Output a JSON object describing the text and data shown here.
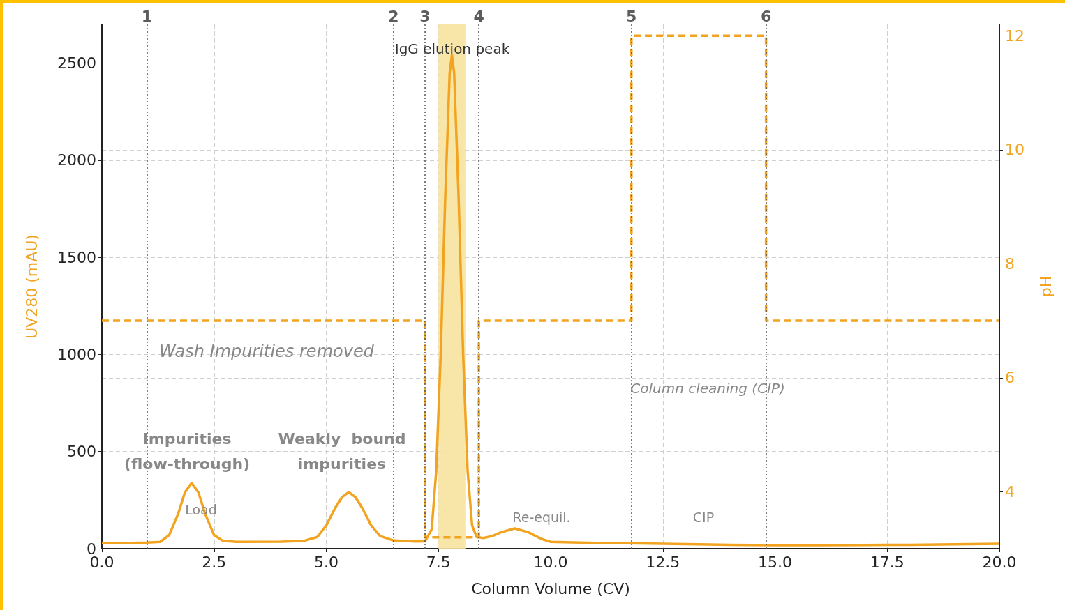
{
  "chart_data": {
    "type": "line",
    "xlabel": "Column Volume (CV)",
    "ylabel": "UV280 (mAU)",
    "y2label": "pH",
    "xlim": [
      0,
      20
    ],
    "xticks": [
      {
        "value": 0,
        "label": "0.0"
      },
      2.5,
      {
        "value": 5,
        "label": "5.0"
      },
      7.5,
      {
        "value": 10,
        "label": "10.0"
      },
      12.5,
      {
        "value": 15,
        "label": "15.0"
      },
      17.5,
      {
        "value": 20,
        "label": "20.0"
      }
    ],
    "ylim": [
      0,
      2700
    ],
    "yticks": [
      0,
      500,
      1000,
      1500,
      2000,
      2500
    ],
    "y2lim": [
      3,
      12.2
    ],
    "y2ticks": [
      4,
      6,
      8,
      10,
      12
    ],
    "grid": true,
    "marker": "none",
    "series": [
      {
        "color": "#f2a31f",
        "line_style": "solid",
        "x": [
          0,
          0.5,
          1.0,
          1.3,
          1.5,
          1.7,
          1.85,
          2.0,
          2.15,
          2.3,
          2.5,
          2.7,
          3.0,
          4.0,
          4.5,
          4.8,
          5.0,
          5.2,
          5.35,
          5.5,
          5.65,
          5.8,
          6.0,
          6.2,
          6.5,
          7.0,
          7.2,
          7.35,
          7.45,
          7.55,
          7.65,
          7.75,
          7.8,
          7.85,
          7.95,
          8.05,
          8.15,
          8.25,
          8.35,
          8.5,
          8.7,
          8.9,
          9.2,
          9.5,
          9.8,
          10.0,
          11,
          12,
          13,
          14,
          15,
          16,
          17,
          18,
          19,
          20
        ],
        "values": [
          28,
          29,
          31,
          35,
          70,
          180,
          290,
          338,
          290,
          180,
          70,
          40,
          35,
          36,
          40,
          60,
          120,
          210,
          265,
          291,
          265,
          210,
          120,
          65,
          42,
          37,
          38,
          100,
          400,
          1000,
          1800,
          2450,
          2543,
          2450,
          1800,
          1000,
          400,
          120,
          60,
          55,
          65,
          85,
          104,
          85,
          50,
          35,
          30,
          27,
          23,
          20,
          18,
          18,
          19,
          20,
          22,
          25
        ]
      },
      {
        "type": "step",
        "axis": "y2",
        "color": "#f2a31f",
        "line_style": "dashed",
        "x": [
          0,
          7.2,
          8.4,
          11.8,
          14.8,
          20
        ],
        "values": [
          7,
          3.2,
          7,
          12,
          7,
          7
        ]
      }
    ],
    "ref_lines": [
      {
        "axis": "x",
        "value": 1.0,
        "color": "#555555",
        "line_style": "dotted"
      },
      {
        "axis": "x",
        "value": 6.5,
        "color": "#555555",
        "line_style": "dotted"
      },
      {
        "axis": "x",
        "value": 7.2,
        "color": "#555555",
        "line_style": "dotted"
      },
      {
        "axis": "x",
        "value": 8.4,
        "color": "#555555",
        "line_style": "dotted"
      },
      {
        "axis": "x",
        "value": 11.8,
        "color": "#555555",
        "line_style": "dotted"
      },
      {
        "axis": "x",
        "value": 14.8,
        "color": "#555555",
        "line_style": "dotted"
      }
    ],
    "bands": [
      {
        "axis": "x",
        "from": 7.5,
        "to": 8.1,
        "color": "#f7e3a0"
      }
    ],
    "annotations": [
      "1",
      "2",
      "3",
      "4",
      "5",
      "6",
      "Impurities\n(flow-through)",
      "Weakly  bound\nimpurities",
      "Load",
      "Wash Impurities removed",
      "IgG elution peak",
      "Re-equil.",
      "CIP",
      "Column cleaning (CIP)"
    ]
  }
}
